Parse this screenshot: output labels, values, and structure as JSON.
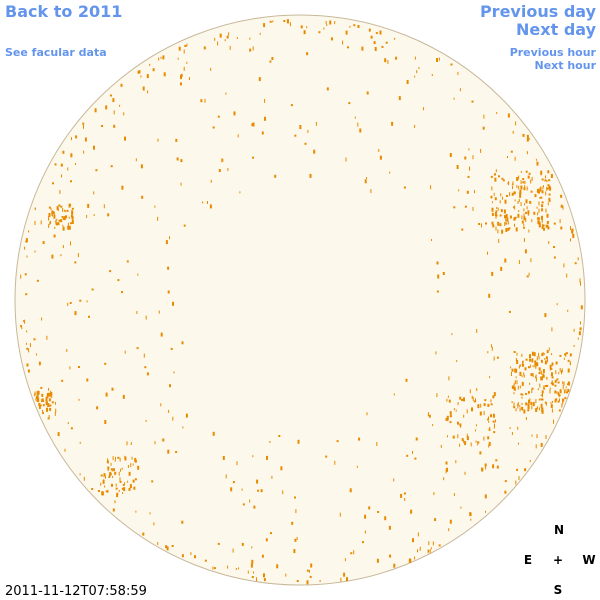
{
  "nav": {
    "back": "Back to 2011",
    "facular": "See facular data",
    "prev_day": "Previous day",
    "next_day": "Next day",
    "prev_hour": "Previous hour",
    "next_hour": "Next hour"
  },
  "timestamp": "2011-11-12T07:58:59",
  "compass": {
    "north": "N",
    "east": "E",
    "center": "+",
    "west": "W",
    "south": "S"
  }
}
